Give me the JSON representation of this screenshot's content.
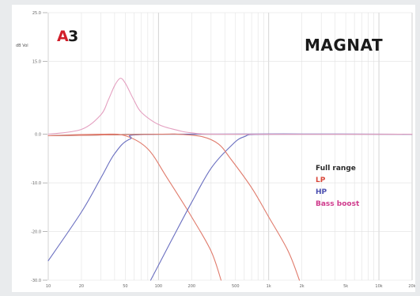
{
  "logo": {
    "letter": "A",
    "number": "3"
  },
  "brand": "MAGNAT",
  "chart_data": {
    "type": "line",
    "y_unit": "dB Vol",
    "ylim": [
      -30,
      25
    ],
    "xlim": [
      10,
      20000
    ],
    "x_scale": "log",
    "grid": true,
    "y_ticks": [
      25,
      15,
      0,
      -10,
      -20,
      -30
    ],
    "y_tick_labels": [
      "25.0",
      "15.0",
      "0.0",
      "-10.0",
      "-20.0",
      "-30.0"
    ],
    "x_ticks": [
      10,
      20,
      50,
      100,
      200,
      500,
      1000,
      2000,
      5000,
      10000,
      20000
    ],
    "x_tick_labels": [
      "10",
      "20",
      "50",
      "100",
      "200",
      "500",
      "1k",
      "2k",
      "5k",
      "10k",
      "20k"
    ],
    "legend_position": "right",
    "series": [
      {
        "name": "Full range",
        "color": "#2b2b2b",
        "points": [
          [
            10,
            -0.3
          ],
          [
            20,
            -0.2
          ],
          [
            100,
            0
          ],
          [
            1000,
            0
          ],
          [
            20000,
            0
          ]
        ]
      },
      {
        "name": "LP",
        "color": "#e07b6c",
        "points": [
          [
            10,
            -0.3
          ],
          [
            30,
            0
          ],
          [
            50,
            -0.3
          ],
          [
            80,
            -3
          ],
          [
            120,
            -9
          ],
          [
            200,
            -17
          ],
          [
            300,
            -24
          ],
          [
            370,
            -30
          ]
        ]
      },
      {
        "name": "HP",
        "color": "#6a6fc0",
        "points": [
          [
            10,
            -26
          ],
          [
            20,
            -16
          ],
          [
            30,
            -9
          ],
          [
            40,
            -4
          ],
          [
            55,
            -1
          ],
          [
            100,
            0
          ],
          [
            20000,
            0
          ]
        ]
      },
      {
        "name": "HP",
        "color": "#6a6fc0",
        "points": [
          [
            85,
            -30
          ],
          [
            130,
            -22
          ],
          [
            200,
            -14
          ],
          [
            300,
            -7
          ],
          [
            450,
            -2.5
          ],
          [
            600,
            -0.5
          ],
          [
            1000,
            0
          ],
          [
            20000,
            0
          ]
        ]
      },
      {
        "name": "LP",
        "color": "#e07b6c",
        "points": [
          [
            10,
            -0.3
          ],
          [
            100,
            0
          ],
          [
            150,
            0
          ],
          [
            250,
            -0.5
          ],
          [
            350,
            -2
          ],
          [
            450,
            -5
          ],
          [
            700,
            -11
          ],
          [
            1000,
            -17
          ],
          [
            1500,
            -24
          ],
          [
            1900,
            -30
          ]
        ]
      },
      {
        "name": "Bass boost",
        "color": "#e4a0c0",
        "points": [
          [
            10,
            0
          ],
          [
            20,
            1
          ],
          [
            30,
            4
          ],
          [
            35,
            7
          ],
          [
            40,
            10
          ],
          [
            45,
            11.5
          ],
          [
            50,
            10.5
          ],
          [
            60,
            7
          ],
          [
            70,
            4.5
          ],
          [
            100,
            2
          ],
          [
            150,
            0.8
          ],
          [
            200,
            0.3
          ],
          [
            400,
            0
          ],
          [
            20000,
            0
          ]
        ]
      }
    ],
    "legend": [
      {
        "label": "Full range",
        "color": "#2b2b2b"
      },
      {
        "label": "LP",
        "color": "#d9483b"
      },
      {
        "label": "HP",
        "color": "#4b4fb0"
      },
      {
        "label": "Bass boost",
        "color": "#cf3a8c"
      }
    ]
  }
}
